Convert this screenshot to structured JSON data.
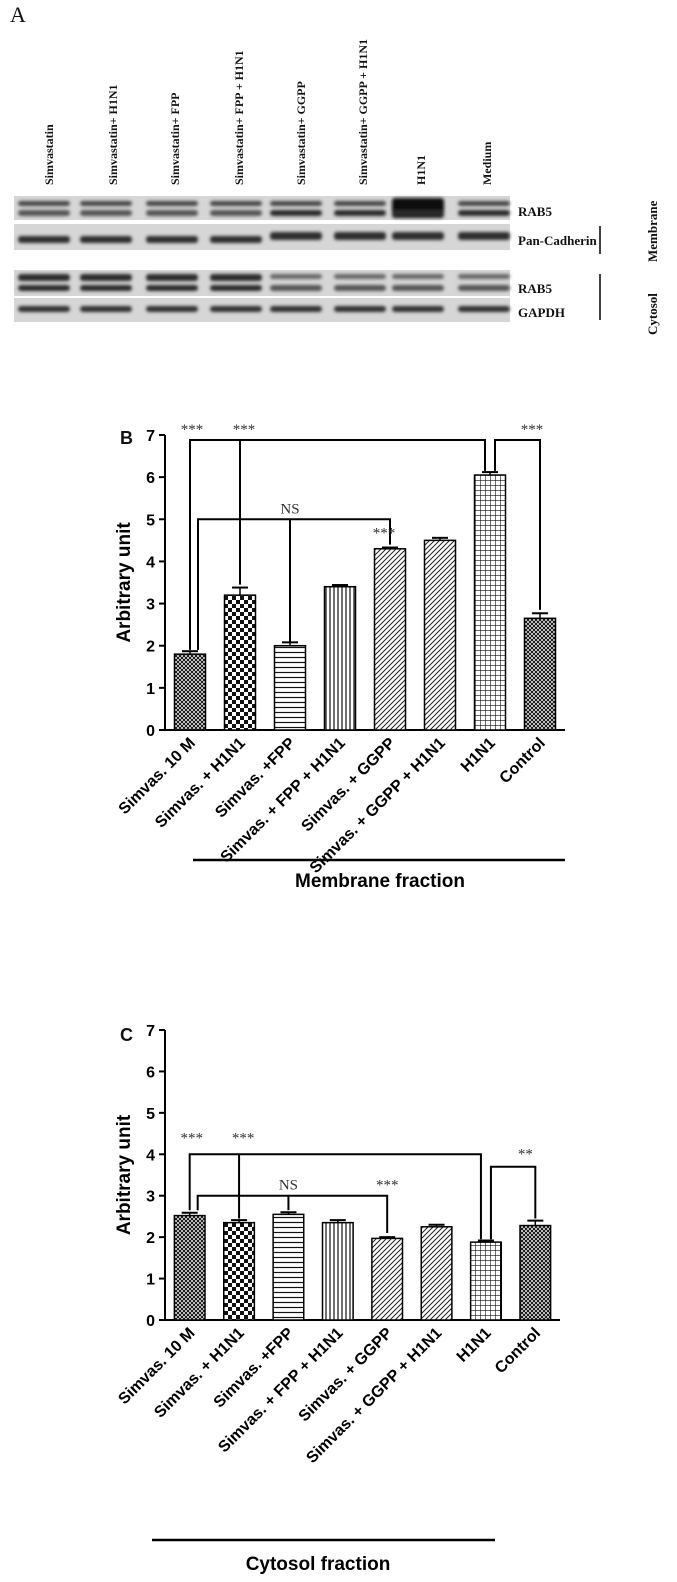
{
  "panel_a": {
    "letter": "A",
    "lanes": [
      "Simvastatin",
      "Simvastatin+ H1N1",
      "Simvastatin+ FPP",
      "Simvastatin+ FPP + H1N1",
      "Simvastatin+ GGPP",
      "Simvastatin+ GGPP + H1N1",
      "H1N1",
      "Medium"
    ],
    "bands": [
      "RAB5",
      "Pan-Cadherin",
      "RAB5",
      "GAPDH"
    ],
    "fractions": [
      "Membrane",
      "Cytosol"
    ]
  },
  "chart_data": [
    {
      "panel": "B",
      "type": "bar",
      "categories": [
        "Simvas. 10 M",
        "Simvas. + H1N1",
        "Simvas. +FPP",
        "Simvas. + FPP + H1N1",
        "Simvas. + GGPP",
        "Simvas. + GGPP + H1N1",
        "H1N1",
        "Control"
      ],
      "values": [
        1.8,
        3.2,
        2.0,
        3.4,
        4.3,
        4.5,
        6.05,
        2.65
      ],
      "errors": [
        0.07,
        0.18,
        0.08,
        0.04,
        0.03,
        0.06,
        0.07,
        0.12
      ],
      "patterns": [
        "crosshatch",
        "checker",
        "hlines",
        "vlines",
        "diag",
        "diag",
        "grid",
        "crosshatch"
      ],
      "ylabel": "Arbitrary unit",
      "xlabel": "Membrane fraction",
      "ylim": [
        0,
        7
      ],
      "yticks": [
        0,
        1,
        2,
        3,
        4,
        5,
        6,
        7
      ],
      "significance": {
        "star3": "***",
        "ns": "NS"
      }
    },
    {
      "panel": "C",
      "type": "bar",
      "categories": [
        "Simvas. 10 M",
        "Simvas. + H1N1",
        "Simvas. +FPP",
        "Simvas. + FPP + H1N1",
        "Simvas. + GGPP",
        "Simvas. + GGPP + H1N1",
        "H1N1",
        "Control"
      ],
      "values": [
        2.52,
        2.35,
        2.55,
        2.35,
        1.97,
        2.25,
        1.88,
        2.28
      ],
      "errors": [
        0.07,
        0.06,
        0.05,
        0.06,
        0.03,
        0.05,
        0.04,
        0.12
      ],
      "patterns": [
        "crosshatch",
        "checker",
        "hlines",
        "vlines",
        "diag",
        "diag",
        "grid",
        "crosshatch"
      ],
      "ylabel": "Arbitrary unit",
      "xlabel": "Cytosol fraction",
      "ylim": [
        0,
        7
      ],
      "yticks": [
        0,
        1,
        2,
        3,
        4,
        5,
        6,
        7
      ],
      "significance": {
        "star3": "***",
        "star2": "**",
        "ns": "NS"
      }
    }
  ]
}
